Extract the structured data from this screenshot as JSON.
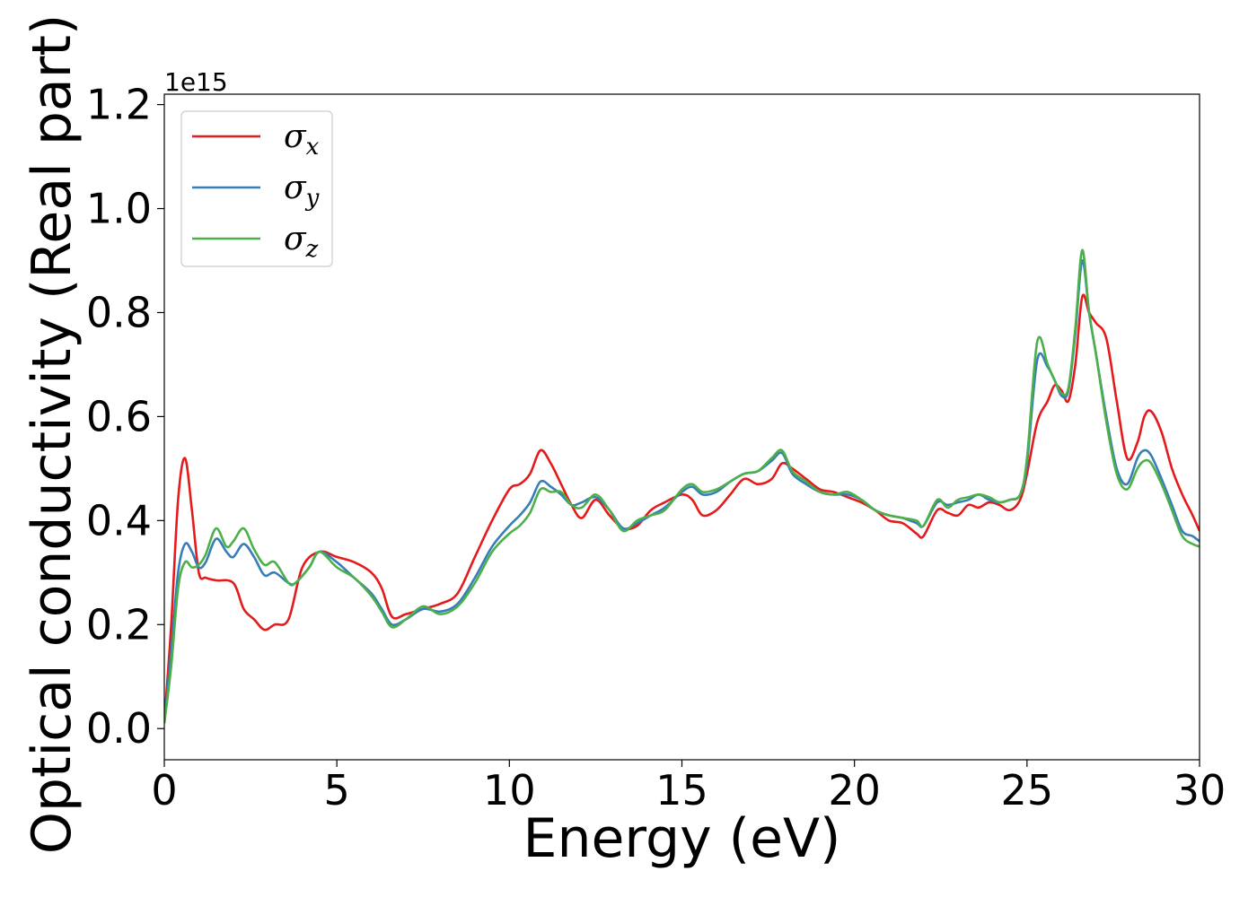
{
  "chart_data": {
    "type": "line",
    "xlabel": "Energy (eV)",
    "ylabel": "Optical conductivity (Real part)",
    "y_offset_label": "1e15",
    "xlim": [
      0,
      30
    ],
    "ylim": [
      -0.06,
      1.22
    ],
    "xticks": [
      0,
      5,
      10,
      15,
      20,
      25,
      30
    ],
    "xtick_labels": [
      "0",
      "5",
      "10",
      "15",
      "20",
      "25",
      "30"
    ],
    "yticks": [
      0.0,
      0.2,
      0.4,
      0.6,
      0.8,
      1.0,
      1.2
    ],
    "ytick_labels": [
      "0.0",
      "0.2",
      "0.4",
      "0.6",
      "0.8",
      "1.0",
      "1.2"
    ],
    "grid": false,
    "legend_position": "upper-left",
    "series": [
      {
        "name": "σx",
        "label_base": "σ",
        "label_sub": "x",
        "color": "#e41a1c",
        "x": [
          0,
          0.2,
          0.4,
          0.6,
          0.8,
          1.0,
          1.2,
          1.5,
          2.0,
          2.3,
          2.6,
          2.9,
          3.2,
          3.6,
          4.0,
          4.5,
          5.0,
          5.5,
          6.0,
          6.3,
          6.6,
          7.0,
          7.5,
          8.0,
          8.5,
          9.0,
          9.5,
          10.0,
          10.3,
          10.6,
          10.9,
          11.2,
          11.5,
          11.8,
          12.1,
          12.5,
          12.9,
          13.3,
          13.7,
          14.1,
          14.5,
          15.0,
          15.3,
          15.6,
          16.0,
          16.4,
          16.8,
          17.2,
          17.6,
          17.9,
          18.2,
          18.6,
          19.0,
          19.4,
          19.8,
          20.2,
          20.6,
          21.0,
          21.4,
          21.8,
          22.0,
          22.4,
          22.7,
          23.0,
          23.3,
          23.6,
          23.9,
          24.2,
          24.5,
          24.8,
          25.0,
          25.3,
          25.6,
          25.8,
          26.0,
          26.2,
          26.4,
          26.6,
          26.8,
          27.0,
          27.3,
          27.6,
          27.9,
          28.2,
          28.4,
          28.6,
          28.9,
          29.2,
          29.5,
          29.8,
          30.0
        ],
        "y": [
          0.01,
          0.2,
          0.44,
          0.52,
          0.42,
          0.3,
          0.29,
          0.285,
          0.28,
          0.23,
          0.21,
          0.19,
          0.2,
          0.21,
          0.31,
          0.34,
          0.33,
          0.32,
          0.3,
          0.27,
          0.215,
          0.22,
          0.23,
          0.24,
          0.26,
          0.33,
          0.4,
          0.46,
          0.47,
          0.49,
          0.535,
          0.51,
          0.47,
          0.43,
          0.405,
          0.44,
          0.41,
          0.385,
          0.39,
          0.42,
          0.435,
          0.45,
          0.44,
          0.41,
          0.42,
          0.45,
          0.48,
          0.47,
          0.48,
          0.51,
          0.5,
          0.48,
          0.46,
          0.455,
          0.445,
          0.435,
          0.42,
          0.4,
          0.395,
          0.375,
          0.37,
          0.42,
          0.415,
          0.41,
          0.43,
          0.425,
          0.435,
          0.43,
          0.42,
          0.44,
          0.49,
          0.59,
          0.63,
          0.66,
          0.65,
          0.63,
          0.7,
          0.83,
          0.8,
          0.78,
          0.75,
          0.63,
          0.52,
          0.55,
          0.6,
          0.61,
          0.57,
          0.5,
          0.45,
          0.41,
          0.38
        ]
      },
      {
        "name": "σy",
        "label_base": "σ",
        "label_sub": "y",
        "color": "#377eb8",
        "x": [
          0,
          0.2,
          0.4,
          0.6,
          0.8,
          1.0,
          1.2,
          1.5,
          1.8,
          2.0,
          2.3,
          2.6,
          2.9,
          3.2,
          3.6,
          3.8,
          4.2,
          4.5,
          5.0,
          5.5,
          6.0,
          6.3,
          6.6,
          7.0,
          7.5,
          8.0,
          8.5,
          9.0,
          9.5,
          10.0,
          10.3,
          10.6,
          10.9,
          11.2,
          11.5,
          11.8,
          12.1,
          12.5,
          12.9,
          13.3,
          13.7,
          14.1,
          14.5,
          15.0,
          15.3,
          15.6,
          16.0,
          16.4,
          16.8,
          17.2,
          17.6,
          17.9,
          18.2,
          18.6,
          19.0,
          19.4,
          19.8,
          20.2,
          20.6,
          21.0,
          21.4,
          21.8,
          22.0,
          22.4,
          22.7,
          23.0,
          23.3,
          23.6,
          23.9,
          24.2,
          24.5,
          24.8,
          25.0,
          25.3,
          25.6,
          25.8,
          26.0,
          26.2,
          26.4,
          26.6,
          26.8,
          27.0,
          27.3,
          27.6,
          27.9,
          28.2,
          28.4,
          28.6,
          28.9,
          29.2,
          29.5,
          29.8,
          30.0
        ],
        "y": [
          0.01,
          0.15,
          0.3,
          0.355,
          0.34,
          0.31,
          0.32,
          0.365,
          0.34,
          0.33,
          0.355,
          0.33,
          0.295,
          0.3,
          0.28,
          0.28,
          0.31,
          0.34,
          0.32,
          0.29,
          0.26,
          0.23,
          0.2,
          0.21,
          0.23,
          0.225,
          0.24,
          0.29,
          0.35,
          0.39,
          0.41,
          0.435,
          0.475,
          0.465,
          0.45,
          0.43,
          0.435,
          0.445,
          0.42,
          0.385,
          0.395,
          0.41,
          0.425,
          0.455,
          0.465,
          0.45,
          0.455,
          0.475,
          0.49,
          0.495,
          0.515,
          0.53,
          0.49,
          0.47,
          0.455,
          0.45,
          0.45,
          0.44,
          0.42,
          0.41,
          0.405,
          0.395,
          0.39,
          0.435,
          0.43,
          0.435,
          0.44,
          0.45,
          0.44,
          0.435,
          0.44,
          0.45,
          0.51,
          0.71,
          0.695,
          0.67,
          0.64,
          0.65,
          0.76,
          0.9,
          0.8,
          0.72,
          0.6,
          0.5,
          0.47,
          0.52,
          0.535,
          0.525,
          0.48,
          0.43,
          0.38,
          0.37,
          0.36
        ]
      },
      {
        "name": "σz",
        "label_base": "σ",
        "label_sub": "z",
        "color": "#4daf4a",
        "x": [
          0,
          0.2,
          0.4,
          0.6,
          0.8,
          1.0,
          1.2,
          1.5,
          1.8,
          2.0,
          2.3,
          2.6,
          2.9,
          3.2,
          3.6,
          3.8,
          4.2,
          4.5,
          5.0,
          5.5,
          6.0,
          6.3,
          6.6,
          7.0,
          7.5,
          8.0,
          8.5,
          9.0,
          9.5,
          10.0,
          10.3,
          10.6,
          10.9,
          11.2,
          11.5,
          11.8,
          12.1,
          12.5,
          12.9,
          13.3,
          13.7,
          14.1,
          14.5,
          15.0,
          15.3,
          15.6,
          16.0,
          16.4,
          16.8,
          17.2,
          17.6,
          17.9,
          18.2,
          18.6,
          19.0,
          19.4,
          19.8,
          20.2,
          20.6,
          21.0,
          21.4,
          21.8,
          22.0,
          22.4,
          22.7,
          23.0,
          23.3,
          23.6,
          23.9,
          24.2,
          24.5,
          24.8,
          25.0,
          25.3,
          25.6,
          25.8,
          26.0,
          26.2,
          26.4,
          26.6,
          26.8,
          27.0,
          27.3,
          27.6,
          27.9,
          28.2,
          28.4,
          28.6,
          28.9,
          29.2,
          29.5,
          29.8,
          30.0
        ],
        "y": [
          0.01,
          0.12,
          0.27,
          0.32,
          0.31,
          0.315,
          0.335,
          0.385,
          0.35,
          0.36,
          0.385,
          0.345,
          0.315,
          0.32,
          0.28,
          0.28,
          0.31,
          0.34,
          0.31,
          0.29,
          0.255,
          0.225,
          0.195,
          0.21,
          0.235,
          0.22,
          0.235,
          0.28,
          0.34,
          0.375,
          0.39,
          0.415,
          0.46,
          0.455,
          0.455,
          0.43,
          0.425,
          0.45,
          0.42,
          0.38,
          0.4,
          0.41,
          0.42,
          0.46,
          0.47,
          0.455,
          0.46,
          0.475,
          0.49,
          0.495,
          0.52,
          0.535,
          0.495,
          0.475,
          0.455,
          0.45,
          0.455,
          0.44,
          0.42,
          0.41,
          0.405,
          0.4,
          0.39,
          0.44,
          0.425,
          0.44,
          0.445,
          0.45,
          0.445,
          0.435,
          0.44,
          0.45,
          0.52,
          0.745,
          0.7,
          0.67,
          0.645,
          0.655,
          0.77,
          0.92,
          0.8,
          0.72,
          0.59,
          0.49,
          0.46,
          0.5,
          0.515,
          0.51,
          0.47,
          0.42,
          0.37,
          0.355,
          0.35
        ]
      }
    ]
  }
}
